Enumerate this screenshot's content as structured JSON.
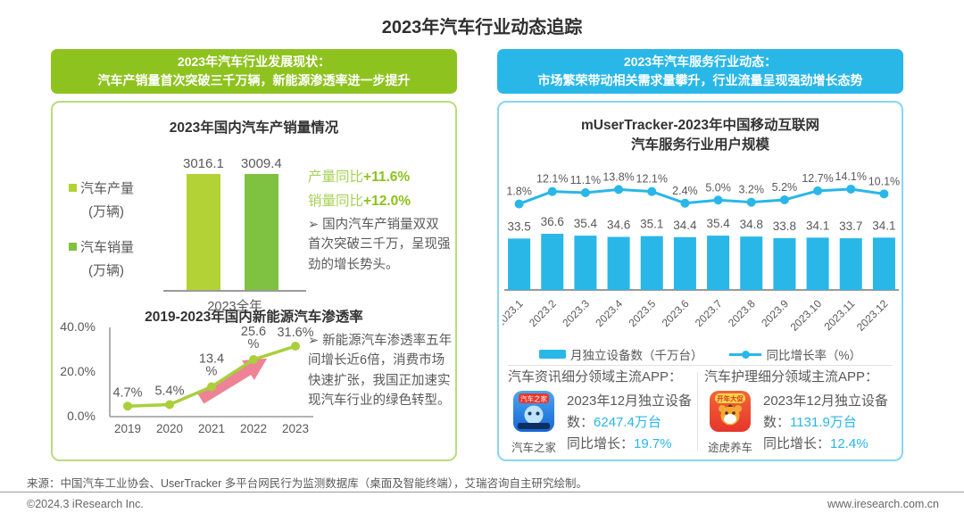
{
  "page_title": "2023年汽车行业动态追踪",
  "colors": {
    "green_header": "#8ec31f",
    "cyan_header": "#29b7e8",
    "bar_production": "#b2d235",
    "bar_sales": "#7fc241",
    "penetration_line": "#a9cf3b",
    "arrow_pink": "#ee8395",
    "cyan_series": "#29b7e8",
    "text_gray": "#595959"
  },
  "left_panel": {
    "header": {
      "line1": "2023年汽车行业发展现状：",
      "line2": "汽车产销量首次突破三千万辆，新能源渗透率进一步提升"
    },
    "sales_chart": {
      "legend": [
        {
          "line1": "汽车产量",
          "line2": "(万辆)"
        },
        {
          "line1": "汽车销量",
          "line2": "(万辆)"
        }
      ],
      "x_label": "2023全年",
      "growth": [
        {
          "label": "产量同比",
          "value": "+11.6%"
        },
        {
          "label": "销量同比",
          "value": "+12.0%"
        }
      ],
      "note": "➢ 国内汽车产销量双双首次突破三千万，呈现强劲的增长势头。"
    },
    "penetration_chart": {
      "note": "➢ 新能源汽车渗透率五年间增长近6倍，消费市场快速扩张，我国正加速实现汽车行业的绿色转型。"
    }
  },
  "right_panel": {
    "header": {
      "line1": "2023年汽车服务行业动态：",
      "line2": "市场繁荣带动相关需求量攀升，行业流量呈现强劲增长态势"
    },
    "user_chart": {
      "title_line1": "mUserTracker-2023年中国移动互联网",
      "title_line2": "汽车服务行业用户规模",
      "legend_bar": "月独立设备数（千万台）",
      "legend_line": "同比增长率（%）"
    },
    "apps": [
      {
        "category": "汽车资讯细分领域主流APP：",
        "app_name": "汽车之家",
        "icon_banner": "汽车之家",
        "stat1_label": "2023年12月独立设备数：",
        "stat1_value": "6247.4万台",
        "stat2_label": "同比增长：",
        "stat2_value": "19.7%"
      },
      {
        "category": "汽车护理细分领域主流APP：",
        "app_name": "途虎养车",
        "icon_banner": "开年大促",
        "stat1_label": "2023年12月独立设备数：",
        "stat1_value": "1131.9万台",
        "stat2_label": "同比增长：",
        "stat2_value": "12.4%"
      }
    ]
  },
  "footer": {
    "source": "来源：中国汽车工业协会、UserTracker 多平台网民行为监测数据库（桌面及智能终端），艾瑞咨询自主研究绘制。",
    "copyright": "©2024.3 iResearch Inc.",
    "website": "www.iresearch.com.cn"
  },
  "chart_data": [
    {
      "type": "bar",
      "title": "2023年国内汽车产销量情况",
      "categories": [
        "2023全年"
      ],
      "series": [
        {
          "name": "汽车产量（万辆）",
          "values": [
            3016.1
          ],
          "color": "#b2d235"
        },
        {
          "name": "汽车销量（万辆）",
          "values": [
            3009.4
          ],
          "color": "#7fc241"
        }
      ],
      "data_labels": [
        "3016.1",
        "3009.4"
      ],
      "annotations": [
        "产量同比+11.6%",
        "销量同比+12.0%"
      ],
      "legend_position": "left"
    },
    {
      "type": "line",
      "title": "2019-2023年国内新能源汽车渗透率",
      "x": [
        "2019",
        "2020",
        "2021",
        "2022",
        "2023"
      ],
      "values": [
        4.7,
        5.4,
        13.4,
        25.6,
        31.6
      ],
      "labels": [
        "4.7%",
        "5.4%",
        "13.4%",
        "25.6%",
        "31.6%"
      ],
      "ylim": [
        0,
        40
      ],
      "y_ticks": [
        "40.0%",
        "20.0%",
        "0.0%"
      ],
      "color": "#a9cf3b",
      "annotation": "上升趋势箭头"
    },
    {
      "type": "bar+line",
      "title": "mUserTracker-2023年中国移动互联网汽车服务行业用户规模",
      "categories": [
        "2023.1",
        "2023.2",
        "2023.3",
        "2023.4",
        "2023.5",
        "2023.6",
        "2023.7",
        "2023.8",
        "2023.9",
        "2023.10",
        "2023.11",
        "2023.12"
      ],
      "series": [
        {
          "name": "月独立设备数（千万台）",
          "type": "bar",
          "color": "#29b7e8",
          "values": [
            33.5,
            36.6,
            35.4,
            34.6,
            35.1,
            34.4,
            35.4,
            34.8,
            33.8,
            34.1,
            33.7,
            34.1
          ]
        },
        {
          "name": "同比增长率（%）",
          "type": "line",
          "color": "#29b7e8",
          "values": [
            1.8,
            12.1,
            11.1,
            13.8,
            12.1,
            2.4,
            5.0,
            3.2,
            5.2,
            12.7,
            14.1,
            10.1
          ]
        }
      ],
      "value_labels": [
        "33.5",
        "36.6",
        "35.4",
        "34.6",
        "35.1",
        "34.4",
        "35.4",
        "34.8",
        "33.8",
        "34.1",
        "33.7",
        "34.1"
      ],
      "growth_labels": [
        "1.8%",
        "12.1%",
        "11.1%",
        "13.8%",
        "12.1%",
        "2.4%",
        "5.0%",
        "3.2%",
        "5.2%",
        "12.7%",
        "14.1%",
        "10.1%"
      ],
      "legend_position": "bottom"
    }
  ]
}
